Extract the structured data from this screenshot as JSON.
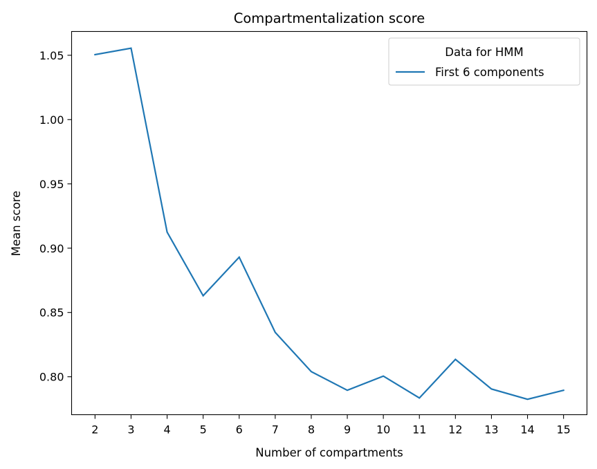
{
  "chart_data": {
    "type": "line",
    "title": "Compartmentalization score",
    "xlabel": "Number of compartments",
    "ylabel": "Mean score",
    "x": [
      2,
      3,
      4,
      5,
      6,
      7,
      8,
      9,
      10,
      11,
      12,
      13,
      14,
      15
    ],
    "series": [
      {
        "name": "First 6 components",
        "color": "#1f77b4",
        "values": [
          1.0505,
          1.0555,
          0.9125,
          0.863,
          0.893,
          0.8345,
          0.804,
          0.7895,
          0.8005,
          0.7835,
          0.8135,
          0.7905,
          0.7825,
          0.7895
        ]
      }
    ],
    "xticks": [
      "2",
      "3",
      "4",
      "5",
      "6",
      "7",
      "8",
      "9",
      "10",
      "11",
      "12",
      "13",
      "14",
      "15"
    ],
    "yticks": [
      "0.80",
      "0.85",
      "0.90",
      "0.95",
      "1.00",
      "1.05"
    ],
    "xlim": [
      1.35,
      15.65
    ],
    "ylim": [
      0.7705,
      1.0685
    ],
    "legend": {
      "title": "Data for HMM",
      "position": "top-right"
    },
    "grid": false
  }
}
